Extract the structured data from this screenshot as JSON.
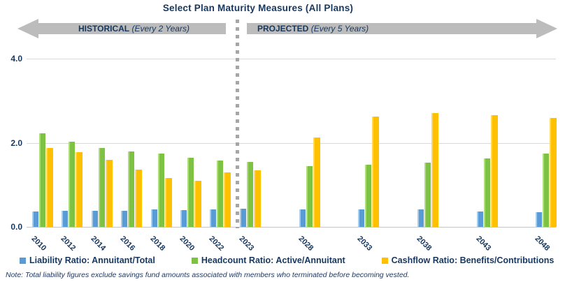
{
  "title": "Select Plan Maturity Measures (All Plans)",
  "banner": {
    "historical_label": "HISTORICAL",
    "historical_sublabel": "(Every 2 Years)",
    "projected_label": "PROJECTED",
    "projected_sublabel": "(Every 5 Years)"
  },
  "note": "Note: Total liability figures exclude savings fund amounts associated with members who terminated before becoming vested.",
  "colors": {
    "navy_text": "#17375E",
    "banner_gray": "#BCBCBC",
    "divider_gray": "#A6A6A6",
    "gridline_gray": "#D9D9D9"
  },
  "chart_data": {
    "type": "bar",
    "title": "Select Plan Maturity Measures (All Plans)",
    "categories": [
      "2010",
      "2012",
      "2014",
      "2016",
      "2018",
      "2020",
      "2022",
      "2023",
      "2028",
      "2033",
      "2038",
      "2043",
      "2048"
    ],
    "category_years": [
      2010,
      2012,
      2014,
      2016,
      2018,
      2020,
      2022,
      2023,
      2028,
      2033,
      2038,
      2043,
      2048
    ],
    "category_sections": [
      "historical",
      "historical",
      "historical",
      "historical",
      "historical",
      "historical",
      "historical",
      "projected",
      "projected",
      "projected",
      "projected",
      "projected",
      "projected"
    ],
    "series": [
      {
        "name": "Liability Ratio: Annuitant/Total",
        "color": "#5B9BD5",
        "color_light": "#A9CCE9",
        "values": [
          0.36,
          0.38,
          0.39,
          0.39,
          0.41,
          0.4,
          0.41,
          0.43,
          0.41,
          0.41,
          0.41,
          0.37,
          0.35
        ]
      },
      {
        "name": "Headcount Ratio: Active/Annuitant",
        "color": "#7DC242",
        "color_light": "#AFDC7D",
        "values": [
          2.22,
          2.02,
          1.88,
          1.8,
          1.75,
          1.65,
          1.57,
          1.55,
          1.45,
          1.48,
          1.52,
          1.62,
          1.74
        ]
      },
      {
        "name": "Cashflow Ratio: Benefits/Contributions",
        "color": "#FFC000",
        "color_light": "#FFD75E",
        "values": [
          1.88,
          1.78,
          1.6,
          1.37,
          1.16,
          1.1,
          1.3,
          1.35,
          2.13,
          2.63,
          2.7,
          2.65,
          2.59
        ]
      }
    ],
    "ylim": [
      0,
      4.0
    ],
    "yticks": [
      "0.0",
      "2.0",
      "4.0"
    ],
    "grid": true,
    "legend_position": "bottom",
    "xlabel": "",
    "ylabel": ""
  }
}
